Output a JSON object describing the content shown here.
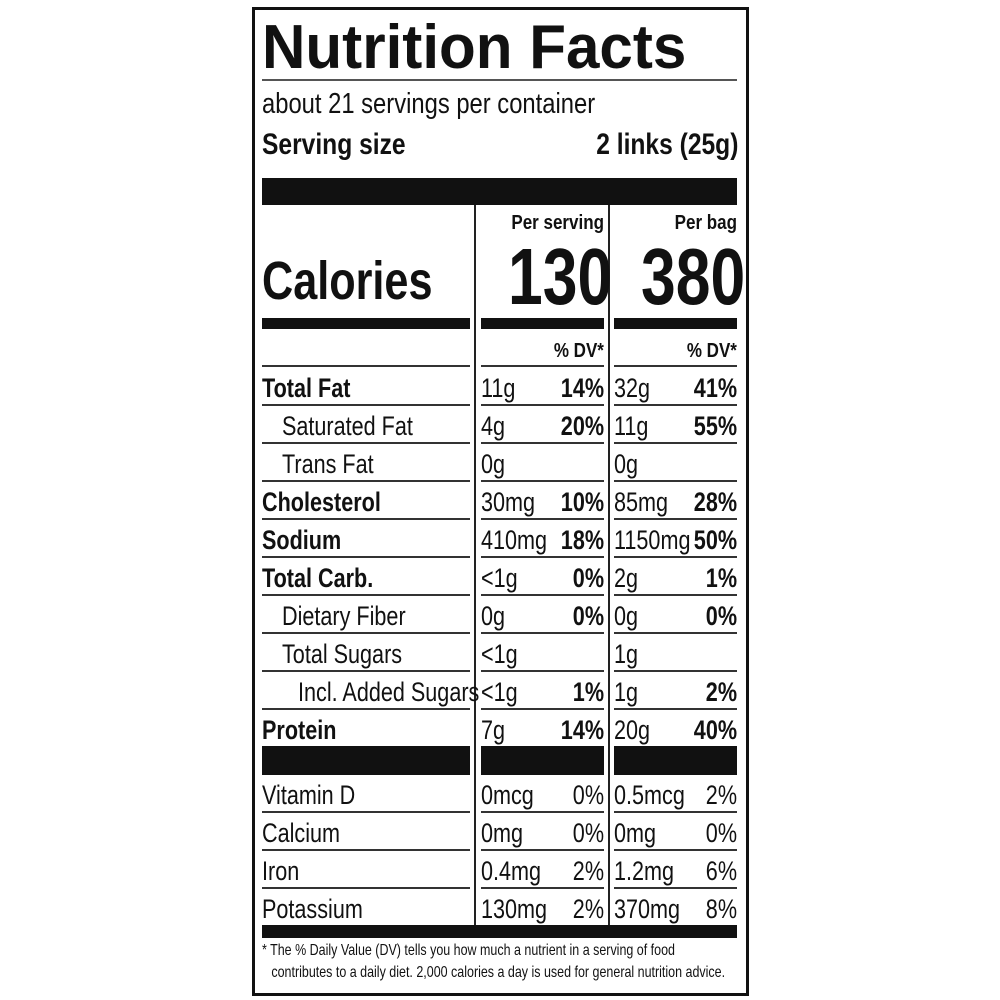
{
  "title": "Nutrition Facts",
  "servings_per_container": "about 21 servings per container",
  "serving_size_label": "Serving size",
  "serving_size_value": "2 links (25g)",
  "calories_label": "Calories",
  "columns": [
    {
      "header": "Per serving",
      "calories": "130",
      "dv_header": "% DV*"
    },
    {
      "header": "Per bag",
      "calories": "380",
      "dv_header": "% DV*"
    }
  ],
  "nutrients": [
    {
      "name": "Total Fat",
      "bold": true,
      "indent": 0,
      "serving": {
        "amount": "11g",
        "dv": "14%"
      },
      "bag": {
        "amount": "32g",
        "dv": "41%"
      }
    },
    {
      "name": "Saturated Fat",
      "bold": false,
      "indent": 1,
      "serving": {
        "amount": "4g",
        "dv": "20%"
      },
      "bag": {
        "amount": "11g",
        "dv": "55%"
      }
    },
    {
      "name": "Trans Fat",
      "bold": false,
      "indent": 1,
      "serving": {
        "amount": "0g",
        "dv": ""
      },
      "bag": {
        "amount": "0g",
        "dv": ""
      }
    },
    {
      "name": "Cholesterol",
      "bold": true,
      "indent": 0,
      "serving": {
        "amount": "30mg",
        "dv": "10%"
      },
      "bag": {
        "amount": "85mg",
        "dv": "28%"
      }
    },
    {
      "name": "Sodium",
      "bold": true,
      "indent": 0,
      "serving": {
        "amount": "410mg",
        "dv": "18%"
      },
      "bag": {
        "amount": "1150mg",
        "dv": "50%"
      }
    },
    {
      "name": "Total Carb.",
      "bold": true,
      "indent": 0,
      "serving": {
        "amount": "<1g",
        "dv": "0%"
      },
      "bag": {
        "amount": "2g",
        "dv": "1%"
      }
    },
    {
      "name": "Dietary Fiber",
      "bold": false,
      "indent": 1,
      "serving": {
        "amount": "0g",
        "dv": "0%"
      },
      "bag": {
        "amount": "0g",
        "dv": "0%"
      }
    },
    {
      "name": "Total Sugars",
      "bold": false,
      "indent": 1,
      "serving": {
        "amount": "<1g",
        "dv": ""
      },
      "bag": {
        "amount": "1g",
        "dv": ""
      }
    },
    {
      "name": "Incl. Added Sugars",
      "bold": false,
      "indent": 2,
      "serving": {
        "amount": "<1g",
        "dv": "1%"
      },
      "bag": {
        "amount": "1g",
        "dv": "2%"
      }
    },
    {
      "name": "Protein",
      "bold": true,
      "indent": 0,
      "serving": {
        "amount": "7g",
        "dv": "14%"
      },
      "bag": {
        "amount": "20g",
        "dv": "40%"
      }
    }
  ],
  "vitamins": [
    {
      "name": "Vitamin D",
      "serving": {
        "amount": "0mcg",
        "dv": "0%"
      },
      "bag": {
        "amount": "0.5mcg",
        "dv": "2%"
      }
    },
    {
      "name": "Calcium",
      "serving": {
        "amount": "0mg",
        "dv": "0%"
      },
      "bag": {
        "amount": "0mg",
        "dv": "0%"
      }
    },
    {
      "name": "Iron",
      "serving": {
        "amount": "0.4mg",
        "dv": "2%"
      },
      "bag": {
        "amount": "1.2mg",
        "dv": "6%"
      }
    },
    {
      "name": "Potassium",
      "serving": {
        "amount": "130mg",
        "dv": "2%"
      },
      "bag": {
        "amount": "370mg",
        "dv": "8%"
      }
    }
  ],
  "footnote_line1": "* The % Daily Value (DV) tells you how much a nutrient in a serving of food",
  "footnote_line2": "contributes to a daily diet. 2,000 calories a day is used for general nutrition advice."
}
